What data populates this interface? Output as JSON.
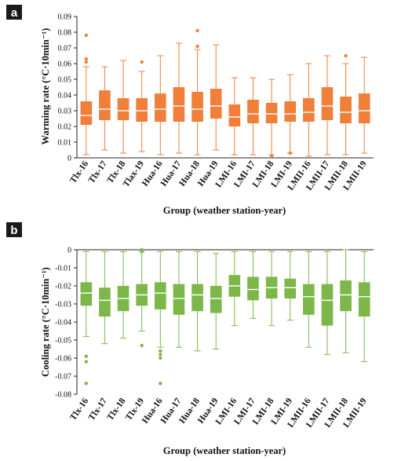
{
  "chart_data": [
    {
      "panel": "a",
      "type": "boxplot",
      "ylabel": "Warming rate (°C·10min⁻¹)",
      "xlabel": "Group (weather station-year)",
      "ylim": [
        0,
        0.09
      ],
      "yticks": [
        "0",
        "0.01",
        "0.02",
        "0.03",
        "0.04",
        "0.05",
        "0.06",
        "0.07",
        "0.08",
        "0.09"
      ],
      "color": "#f07f3a",
      "categories": [
        "Tlx-16",
        "Tlx-17",
        "Tlx-18",
        "Tlax-19",
        "Hua-16",
        "Hua-17",
        "Hua-18",
        "Hua-19",
        "LMI-16",
        "LMI-17",
        "LMI-18",
        "LMI-19",
        "LMII-16",
        "LMII-17",
        "LMII-18",
        "LMII-19"
      ],
      "boxes": [
        {
          "whisker_low": 0.002,
          "q1": 0.021,
          "median": 0.027,
          "q3": 0.036,
          "whisker_high": 0.058,
          "outliers": [
            0.078,
            0.063,
            0.061
          ]
        },
        {
          "whisker_low": 0.005,
          "q1": 0.024,
          "median": 0.031,
          "q3": 0.043,
          "whisker_high": 0.058,
          "outliers": []
        },
        {
          "whisker_low": 0.003,
          "q1": 0.024,
          "median": 0.03,
          "q3": 0.038,
          "whisker_high": 0.062,
          "outliers": []
        },
        {
          "whisker_low": 0.004,
          "q1": 0.023,
          "median": 0.03,
          "q3": 0.038,
          "whisker_high": 0.055,
          "outliers": [
            0.061
          ]
        },
        {
          "whisker_low": 0.002,
          "q1": 0.023,
          "median": 0.031,
          "q3": 0.041,
          "whisker_high": 0.065,
          "outliers": []
        },
        {
          "whisker_low": 0.003,
          "q1": 0.023,
          "median": 0.033,
          "q3": 0.045,
          "whisker_high": 0.073,
          "outliers": []
        },
        {
          "whisker_low": 0.002,
          "q1": 0.023,
          "median": 0.031,
          "q3": 0.042,
          "whisker_high": 0.069,
          "outliers": [
            0.081,
            0.071
          ]
        },
        {
          "whisker_low": 0.005,
          "q1": 0.025,
          "median": 0.033,
          "q3": 0.044,
          "whisker_high": 0.072,
          "outliers": []
        },
        {
          "whisker_low": 0.002,
          "q1": 0.02,
          "median": 0.026,
          "q3": 0.034,
          "whisker_high": 0.051,
          "outliers": []
        },
        {
          "whisker_low": 0.002,
          "q1": 0.022,
          "median": 0.028,
          "q3": 0.037,
          "whisker_high": 0.051,
          "outliers": []
        },
        {
          "whisker_low": 0.002,
          "q1": 0.022,
          "median": 0.028,
          "q3": 0.035,
          "whisker_high": 0.05,
          "outliers": [
            0.001
          ]
        },
        {
          "whisker_low": 0.003,
          "q1": 0.023,
          "median": 0.028,
          "q3": 0.036,
          "whisker_high": 0.053,
          "outliers": [
            0.003
          ]
        },
        {
          "whisker_low": 0.001,
          "q1": 0.023,
          "median": 0.029,
          "q3": 0.038,
          "whisker_high": 0.06,
          "outliers": []
        },
        {
          "whisker_low": 0.002,
          "q1": 0.024,
          "median": 0.033,
          "q3": 0.045,
          "whisker_high": 0.065,
          "outliers": []
        },
        {
          "whisker_low": 0.002,
          "q1": 0.022,
          "median": 0.029,
          "q3": 0.039,
          "whisker_high": 0.06,
          "outliers": [
            0.065
          ]
        },
        {
          "whisker_low": 0.003,
          "q1": 0.022,
          "median": 0.03,
          "q3": 0.041,
          "whisker_high": 0.064,
          "outliers": []
        }
      ]
    },
    {
      "panel": "b",
      "type": "boxplot",
      "ylabel": "Cooling rate (°C·10min⁻¹)",
      "xlabel": "Group (weather station-year)",
      "ylim": [
        -0.08,
        0
      ],
      "yticks": [
        "0",
        "-0.01",
        "-0.02",
        "-0.03",
        "-0.04",
        "-0.05",
        "-0.06",
        "-0.07",
        "-0.08"
      ],
      "color": "#7db74a",
      "categories": [
        "Tlx-16",
        "Tlx-17",
        "Tlx-18",
        "Tlx-19",
        "Hua-16",
        "Hua-17",
        "Hua-18",
        "Hua-19",
        "LMI-16",
        "LMI-17",
        "LMI-18",
        "LMI-19",
        "LMII-16",
        "LMII-17",
        "LMII-18",
        "LMII-19"
      ],
      "boxes": [
        {
          "whisker_low": -0.048,
          "q1": -0.031,
          "median": -0.024,
          "q3": -0.018,
          "whisker_high": -0.001,
          "outliers": [
            -0.059,
            -0.062,
            -0.074
          ]
        },
        {
          "whisker_low": -0.052,
          "q1": -0.037,
          "median": -0.028,
          "q3": -0.021,
          "whisker_high": -0.001,
          "outliers": []
        },
        {
          "whisker_low": -0.049,
          "q1": -0.034,
          "median": -0.027,
          "q3": -0.02,
          "whisker_high": -0.001,
          "outliers": []
        },
        {
          "whisker_low": -0.045,
          "q1": -0.031,
          "median": -0.025,
          "q3": -0.019,
          "whisker_high": -0.001,
          "outliers": [
            0.0,
            -0.001,
            -0.053
          ]
        },
        {
          "whisker_low": -0.054,
          "q1": -0.033,
          "median": -0.024,
          "q3": -0.018,
          "whisker_high": -0.001,
          "outliers": [
            -0.056,
            -0.058,
            -0.06,
            -0.074
          ]
        },
        {
          "whisker_low": -0.054,
          "q1": -0.036,
          "median": -0.027,
          "q3": -0.019,
          "whisker_high": -0.001,
          "outliers": []
        },
        {
          "whisker_low": -0.056,
          "q1": -0.034,
          "median": -0.025,
          "q3": -0.019,
          "whisker_high": -0.001,
          "outliers": []
        },
        {
          "whisker_low": -0.055,
          "q1": -0.035,
          "median": -0.027,
          "q3": -0.02,
          "whisker_high": -0.002,
          "outliers": []
        },
        {
          "whisker_low": -0.042,
          "q1": -0.026,
          "median": -0.02,
          "q3": -0.014,
          "whisker_high": -0.001,
          "outliers": []
        },
        {
          "whisker_low": -0.038,
          "q1": -0.028,
          "median": -0.022,
          "q3": -0.015,
          "whisker_high": -0.001,
          "outliers": []
        },
        {
          "whisker_low": -0.042,
          "q1": -0.027,
          "median": -0.021,
          "q3": -0.015,
          "whisker_high": -0.001,
          "outliers": []
        },
        {
          "whisker_low": -0.039,
          "q1": -0.027,
          "median": -0.021,
          "q3": -0.016,
          "whisker_high": -0.001,
          "outliers": []
        },
        {
          "whisker_low": -0.054,
          "q1": -0.036,
          "median": -0.026,
          "q3": -0.019,
          "whisker_high": -0.001,
          "outliers": []
        },
        {
          "whisker_low": -0.058,
          "q1": -0.042,
          "median": -0.028,
          "q3": -0.019,
          "whisker_high": -0.001,
          "outliers": []
        },
        {
          "whisker_low": -0.057,
          "q1": -0.034,
          "median": -0.025,
          "q3": -0.017,
          "whisker_high": 0.0,
          "outliers": []
        },
        {
          "whisker_low": -0.062,
          "q1": -0.037,
          "median": -0.026,
          "q3": -0.018,
          "whisker_high": -0.001,
          "outliers": []
        }
      ]
    }
  ]
}
